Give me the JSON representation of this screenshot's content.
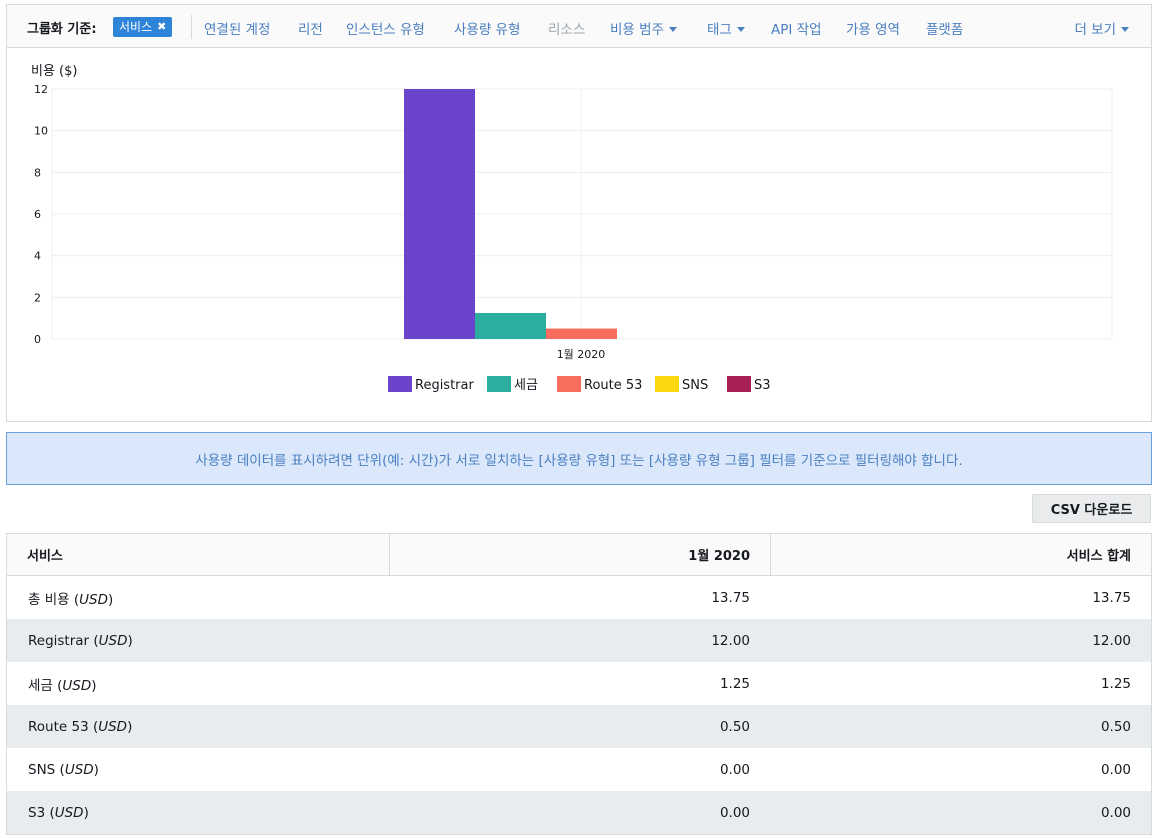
{
  "group_by": {
    "label": "그룹화 기준:",
    "chip_label": "서비스",
    "chip_remove_glyph": "✖",
    "items": [
      {
        "label": "연결된 계정",
        "dropdown": false,
        "enabled": true
      },
      {
        "label": "리전",
        "dropdown": false,
        "enabled": true
      },
      {
        "label": "인스턴스 유형",
        "dropdown": false,
        "enabled": true
      },
      {
        "label": "사용량 유형",
        "dropdown": false,
        "enabled": true
      },
      {
        "label": "리소스",
        "dropdown": false,
        "enabled": false
      },
      {
        "label": "비용 범주",
        "dropdown": true,
        "enabled": true
      },
      {
        "label": "태그",
        "dropdown": true,
        "enabled": true
      },
      {
        "label": "API 작업",
        "dropdown": false,
        "enabled": true
      },
      {
        "label": "가용 영역",
        "dropdown": false,
        "enabled": true
      },
      {
        "label": "플랫폼",
        "dropdown": false,
        "enabled": true
      }
    ],
    "more_label": "더 보기"
  },
  "chart_data": {
    "type": "bar",
    "ylabel": "비용 ($)",
    "ylim": [
      0,
      12
    ],
    "yticks": [
      0,
      2,
      4,
      6,
      8,
      10,
      12
    ],
    "categories": [
      "1월 2020"
    ],
    "series": [
      {
        "name": "Registrar",
        "values": [
          12.0
        ],
        "color": "#6b44cc"
      },
      {
        "name": "세금",
        "values": [
          1.25
        ],
        "color": "#2bae9f"
      },
      {
        "name": "Route 53",
        "values": [
          0.5
        ],
        "color": "#f96d5e"
      },
      {
        "name": "SNS",
        "values": [
          0.0
        ],
        "color": "#fcd80f"
      },
      {
        "name": "S3",
        "values": [
          0.0
        ],
        "color": "#a81f55"
      }
    ],
    "legend_position": "bottom",
    "grid": true
  },
  "banner": {
    "text": "사용량 데이터를 표시하려면 단위(예: 시간)가 서로 일치하는 [사용량 유형] 또는 [사용량 유형 그룹] 필터를 기준으로 필터링해야 합니다."
  },
  "csv_button": {
    "label": "CSV 다운로드"
  },
  "table": {
    "headers": [
      "서비스",
      "1월 2020",
      "서비스 합계"
    ],
    "unit": "USD",
    "rows": [
      {
        "name": "총 비용",
        "month": "13.75",
        "total": "13.75"
      },
      {
        "name": "Registrar",
        "month": "12.00",
        "total": "12.00"
      },
      {
        "name": "세금",
        "month": "1.25",
        "total": "1.25"
      },
      {
        "name": "Route 53",
        "month": "0.50",
        "total": "0.50"
      },
      {
        "name": "SNS",
        "month": "0.00",
        "total": "0.00"
      },
      {
        "name": "S3",
        "month": "0.00",
        "total": "0.00"
      }
    ]
  }
}
